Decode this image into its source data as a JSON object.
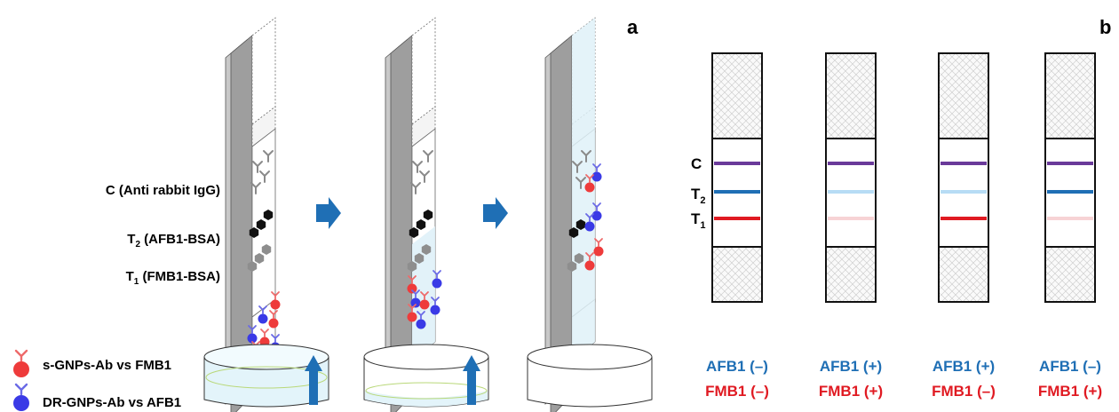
{
  "panel_a": {
    "letter": "a",
    "labels": {
      "c_line": "C (Anti rabbit IgG)",
      "t2_prefix": "T",
      "t2_sub": "2",
      "t2_rest": " (AFB1-BSA)",
      "t1_prefix": "T",
      "t1_sub": "1",
      "t1_rest": " (FMB1-BSA)"
    },
    "legend": [
      {
        "text": "s-GNPs-Ab vs FMB1",
        "color": "#ee3b3b"
      },
      {
        "text": "DR-GNPs-Ab vs AFB1",
        "color": "#3a3ae6"
      }
    ]
  },
  "panel_b": {
    "letter": "b",
    "line_labels": {
      "c": "C",
      "t2_prefix": "T",
      "t2_sub": "2",
      "t1_prefix": "T",
      "t1_sub": "1"
    },
    "strips": [
      {
        "afb1": "AFB1  (–)",
        "fmb1": "FMB1 (–)",
        "c_color": "#6a3a9a",
        "t2_color": "#1f6fb5",
        "t1_color": "#e01a22"
      },
      {
        "afb1": "AFB1  (+)",
        "fmb1": "FMB1 (+)",
        "c_color": "#6a3a9a",
        "t2_color": "#b7dcf5",
        "t1_color": "#f7d3d5"
      },
      {
        "afb1": "AFB1  (+)",
        "fmb1": "FMB1 (–)",
        "c_color": "#6a3a9a",
        "t2_color": "#b7dcf5",
        "t1_color": "#e01a22"
      },
      {
        "afb1": "AFB1  (–)",
        "fmb1": "FMB1 (+)",
        "c_color": "#6a3a9a",
        "t2_color": "#1f6fb5",
        "t1_color": "#f7d3d5"
      }
    ]
  },
  "colors": {
    "afb1_text": "#1f6fb5",
    "fmb1_text": "#e01a22",
    "arrow": "#1f6fb5",
    "liquid": "#dff1f8"
  }
}
